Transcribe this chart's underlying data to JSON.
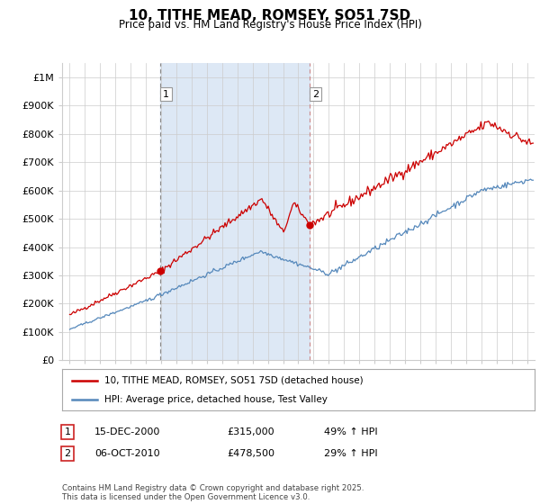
{
  "title": "10, TITHE MEAD, ROMSEY, SO51 7SD",
  "subtitle": "Price paid vs. HM Land Registry's House Price Index (HPI)",
  "legend_line1": "10, TITHE MEAD, ROMSEY, SO51 7SD (detached house)",
  "legend_line2": "HPI: Average price, detached house, Test Valley",
  "sale1_date": "15-DEC-2000",
  "sale1_price": "£315,000",
  "sale1_hpi": "49% ↑ HPI",
  "sale2_date": "06-OCT-2010",
  "sale2_price": "£478,500",
  "sale2_hpi": "29% ↑ HPI",
  "footer": "Contains HM Land Registry data © Crown copyright and database right 2025.\nThis data is licensed under the Open Government Licence v3.0.",
  "red_color": "#cc0000",
  "blue_color": "#5588bb",
  "shade_color": "#dde8f5",
  "grid_color": "#cccccc",
  "bg_color": "#ffffff",
  "ylim": [
    0,
    1050000
  ],
  "yticks": [
    0,
    100000,
    200000,
    300000,
    400000,
    500000,
    600000,
    700000,
    800000,
    900000,
    1000000
  ],
  "ytick_labels": [
    "£0",
    "£100K",
    "£200K",
    "£300K",
    "£400K",
    "£500K",
    "£600K",
    "£700K",
    "£800K",
    "£900K",
    "£1M"
  ],
  "xlim_start": 1994.5,
  "xlim_end": 2025.5,
  "sale1_x": 2000.96,
  "sale1_y": 315000,
  "sale2_x": 2010.76,
  "sale2_y": 478500
}
